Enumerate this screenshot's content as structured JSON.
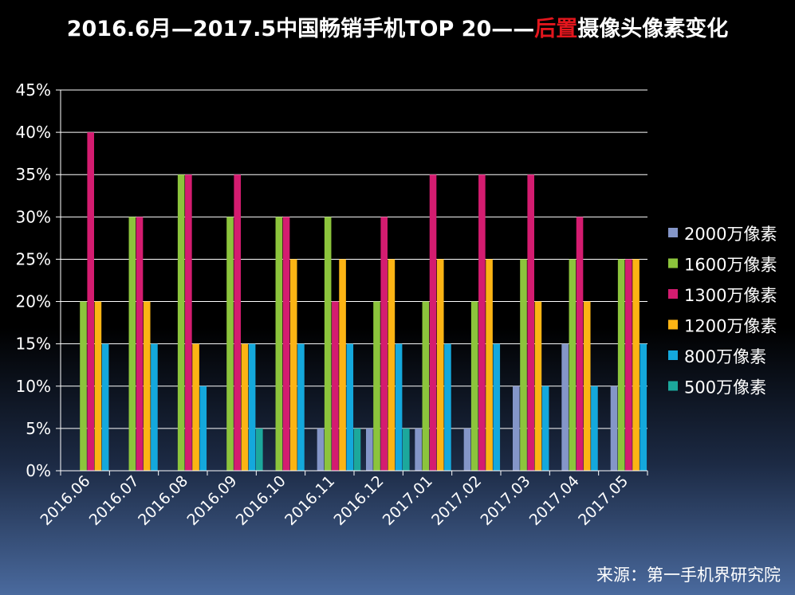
{
  "title": {
    "part1": "2016.6月—2017.5中国畅销手机TOP 20——",
    "highlight": "后置",
    "part2": "摄像头像素变化",
    "highlight_color": "#e3161d"
  },
  "source": "来源：第一手机界研究院",
  "chart_data": {
    "type": "bar",
    "ylim": [
      0,
      45
    ],
    "yticks": [
      0,
      5,
      10,
      15,
      20,
      25,
      30,
      35,
      40,
      45
    ],
    "ytick_labels": [
      "0%",
      "5%",
      "10%",
      "15%",
      "20%",
      "25%",
      "30%",
      "35%",
      "40%",
      "45%"
    ],
    "grid": true,
    "legend_position": "right",
    "categories": [
      "2016.06",
      "2016.07",
      "2016.08",
      "2016.09",
      "2016.10",
      "2016.11",
      "2016.12",
      "2017.01",
      "2017.02",
      "2017.03",
      "2017.04",
      "2017.05"
    ],
    "series": [
      {
        "name": "2000万像素",
        "color": "#8496c8",
        "values": [
          0,
          0,
          0,
          0,
          0,
          5,
          5,
          5,
          5,
          10,
          15,
          10
        ]
      },
      {
        "name": "1600万像素",
        "color": "#8cc43c",
        "values": [
          20,
          30,
          35,
          30,
          30,
          30,
          20,
          20,
          20,
          25,
          25,
          25
        ]
      },
      {
        "name": "1300万像素",
        "color": "#d41c70",
        "values": [
          40,
          30,
          35,
          35,
          30,
          20,
          30,
          35,
          35,
          35,
          30,
          25
        ]
      },
      {
        "name": "1200万像素",
        "color": "#fcb414",
        "values": [
          20,
          20,
          15,
          15,
          25,
          25,
          25,
          25,
          25,
          20,
          20,
          25
        ]
      },
      {
        "name": "800万像素",
        "color": "#14a8dc",
        "values": [
          15,
          15,
          10,
          15,
          15,
          15,
          15,
          15,
          15,
          10,
          10,
          15
        ]
      },
      {
        "name": "500万像素",
        "color": "#1ca89c",
        "values": [
          0,
          0,
          0,
          5,
          0,
          5,
          5,
          0,
          0,
          0,
          0,
          0
        ]
      }
    ]
  }
}
